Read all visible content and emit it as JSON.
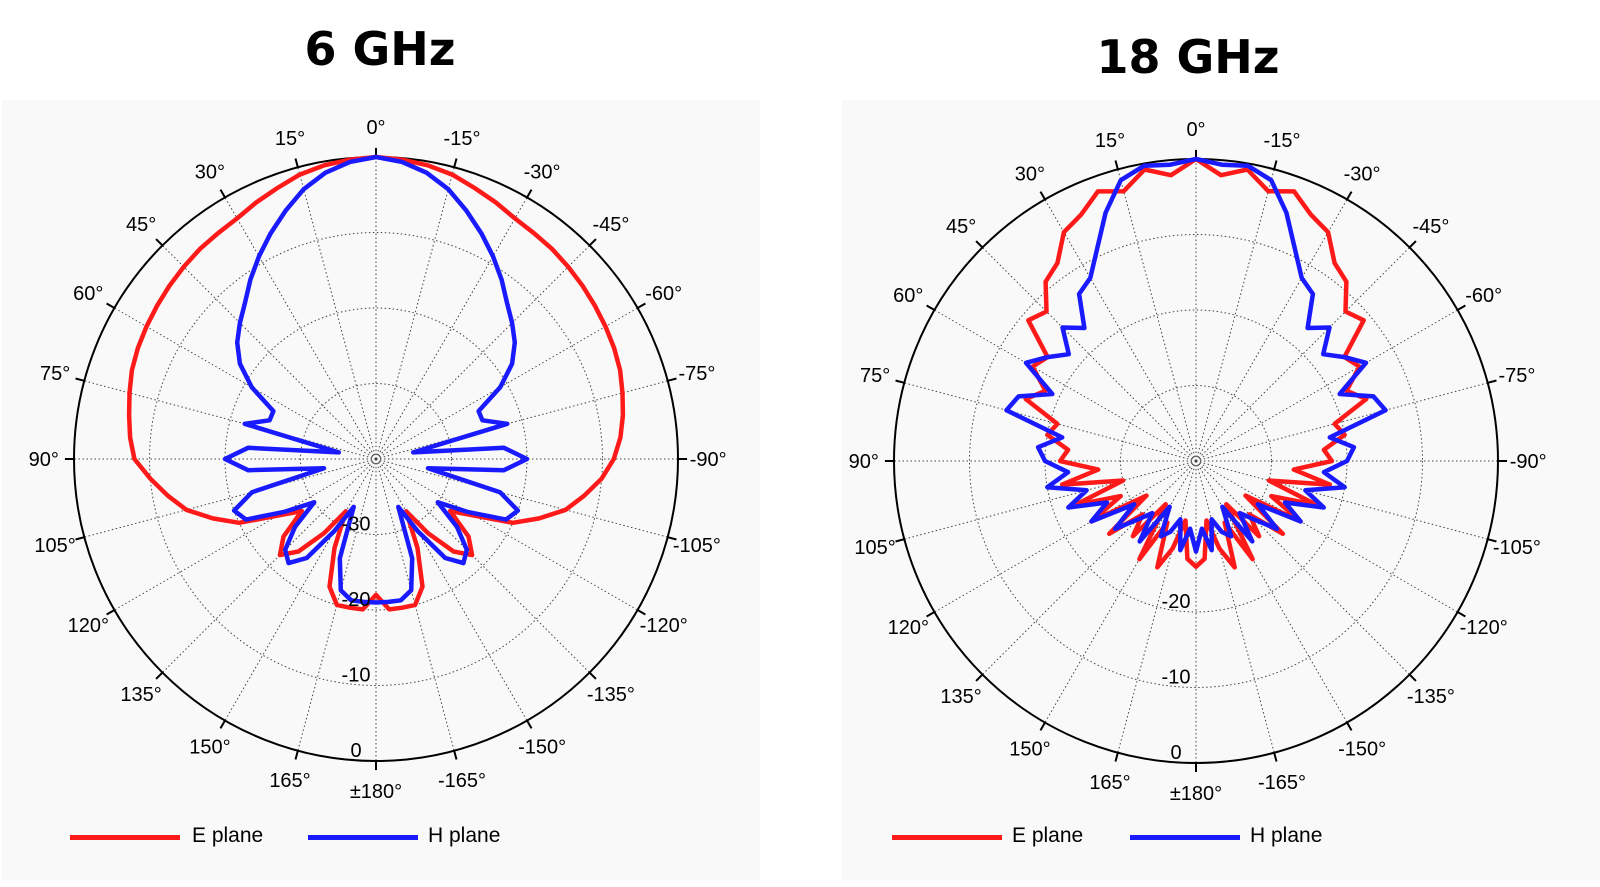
{
  "chart_data": [
    {
      "type": "polar-line",
      "title": "6 GHz",
      "angle_labels": [
        "0°",
        "15°",
        "30°",
        "45°",
        "60°",
        "75°",
        "90°",
        "105°",
        "120°",
        "135°",
        "150°",
        "165°",
        "±180°",
        "-165°",
        "-150°",
        "-135°",
        "-120°",
        "-105°",
        "-90°",
        "-75°",
        "-60°",
        "-45°",
        "-30°",
        "-15°"
      ],
      "radial_ticks": [
        "-30",
        "-20",
        "-10",
        "0"
      ],
      "r_range_db": [
        -40,
        0
      ],
      "angle_direction": "counterclockwise, 0° at top",
      "grid": true,
      "legend_position": "bottom",
      "series": [
        {
          "name": "E plane",
          "color": "#ff1a1a",
          "angles_deg": [
            0,
            5,
            10,
            15,
            20,
            25,
            30,
            35,
            40,
            45,
            50,
            55,
            60,
            65,
            70,
            75,
            80,
            85,
            90,
            95,
            100,
            105,
            110,
            115,
            120,
            125,
            130,
            135,
            140,
            145,
            150,
            155,
            160,
            165,
            170,
            175,
            180,
            185,
            190,
            195,
            200,
            205,
            210,
            215,
            220,
            225,
            230,
            235,
            240,
            245,
            250,
            255,
            260,
            265,
            270,
            275,
            280,
            285,
            290,
            295,
            300,
            305,
            310,
            315,
            320,
            325,
            330,
            335,
            340,
            345,
            350,
            355
          ],
          "values_db": [
            0,
            -0.2,
            -0.5,
            -1,
            -1.8,
            -2.5,
            -3.2,
            -3.5,
            -3.7,
            -4,
            -4.3,
            -4.6,
            -4.9,
            -5.2,
            -5.6,
            -6.2,
            -6.8,
            -7.3,
            -8,
            -10,
            -12,
            -14,
            -17,
            -20,
            -25,
            -28,
            -24,
            -22,
            -24,
            -28,
            -32,
            -27,
            -22,
            -20,
            -20,
            -20,
            -22,
            -20,
            -20,
            -20,
            -22,
            -27,
            -32,
            -28,
            -24,
            -22,
            -24,
            -28,
            -25,
            -20,
            -17,
            -14,
            -12,
            -10,
            -8.5,
            -7.5,
            -6.8,
            -6.2,
            -5.6,
            -5.2,
            -4.9,
            -4.6,
            -4.3,
            -4,
            -3.7,
            -3.5,
            -3.2,
            -2.5,
            -1.8,
            -1,
            -0.5,
            -0.2
          ]
        },
        {
          "name": "H plane",
          "color": "#1a1aff",
          "angles_deg": [
            0,
            5,
            10,
            15,
            20,
            25,
            30,
            35,
            40,
            45,
            50,
            55,
            60,
            65,
            70,
            75,
            80,
            85,
            90,
            95,
            100,
            105,
            110,
            115,
            120,
            125,
            130,
            135,
            140,
            145,
            150,
            155,
            160,
            165,
            170,
            175,
            180,
            185,
            190,
            195,
            200,
            205,
            210,
            215,
            220,
            225,
            230,
            235,
            240,
            245,
            250,
            255,
            260,
            265,
            270,
            275,
            280,
            285,
            290,
            295,
            300,
            305,
            310,
            315,
            320,
            325,
            330,
            335,
            340,
            345,
            350,
            355
          ],
          "values_db": [
            0,
            -0.5,
            -1.5,
            -3,
            -5,
            -7,
            -9,
            -11,
            -13,
            -14.5,
            -16,
            -18,
            -21,
            -25,
            -25,
            -22,
            -35,
            -23,
            -20,
            -23,
            -33,
            -23,
            -20,
            -21,
            -26,
            -30,
            -26,
            -23,
            -22,
            -24,
            -29,
            -33,
            -26,
            -22,
            -21,
            -21,
            -21,
            -21,
            -21,
            -22,
            -26,
            -33,
            -29,
            -24,
            -22,
            -23,
            -26,
            -30,
            -26,
            -21,
            -20,
            -23,
            -33,
            -23,
            -20,
            -23,
            -35,
            -22,
            -25,
            -25,
            -21,
            -18,
            -16,
            -14.5,
            -13,
            -11,
            -9,
            -7,
            -5,
            -3,
            -1.5,
            -0.5
          ]
        }
      ]
    },
    {
      "type": "polar-line",
      "title": "18 GHz",
      "angle_labels": [
        "0°",
        "15°",
        "30°",
        "45°",
        "60°",
        "75°",
        "90°",
        "105°",
        "120°",
        "135°",
        "150°",
        "165°",
        "±180°",
        "-165°",
        "-150°",
        "-135°",
        "-120°",
        "-105°",
        "-90°",
        "-75°",
        "-60°",
        "-45°",
        "-30°",
        "-15°"
      ],
      "radial_ticks": [
        "-20",
        "-10",
        "0"
      ],
      "r_range_db": [
        -40,
        0
      ],
      "angle_direction": "counterclockwise, 0° at top",
      "grid": true,
      "legend_position": "bottom",
      "series": [
        {
          "name": "E plane",
          "color": "#ff1a1a",
          "angles_deg": [
            0,
            5,
            10,
            15,
            20,
            25,
            30,
            35,
            40,
            45,
            50,
            55,
            60,
            65,
            70,
            75,
            80,
            85,
            90,
            95,
            100,
            105,
            110,
            115,
            120,
            125,
            130,
            135,
            140,
            145,
            150,
            155,
            160,
            165,
            170,
            175,
            180,
            185,
            190,
            195,
            200,
            205,
            210,
            215,
            220,
            225,
            230,
            235,
            240,
            245,
            250,
            255,
            260,
            265,
            270,
            275,
            280,
            285,
            290,
            295,
            300,
            305,
            310,
            315,
            320,
            325,
            330,
            335,
            340,
            345,
            350,
            355
          ],
          "values_db": [
            0,
            -2,
            -0.8,
            -3,
            -2,
            -4,
            -5,
            -8,
            -9,
            -12,
            -11,
            -16,
            -15,
            -18,
            -16,
            -21,
            -20,
            -23,
            -22,
            -27,
            -22,
            -30,
            -23,
            -29,
            -24,
            -32,
            -25,
            -30,
            -27,
            -33,
            -25,
            -31,
            -25,
            -28,
            -32,
            -27,
            -26,
            -27,
            -32,
            -28,
            -25,
            -31,
            -25,
            -33,
            -27,
            -30,
            -25,
            -32,
            -24,
            -29,
            -23,
            -30,
            -22,
            -27,
            -22,
            -23,
            -20,
            -21,
            -16,
            -18,
            -15,
            -16,
            -11,
            -12,
            -9,
            -8,
            -5,
            -4,
            -2,
            -3,
            -0.8,
            -2
          ]
        },
        {
          "name": "H plane",
          "color": "#1a1aff",
          "angles_deg": [
            0,
            5,
            10,
            15,
            20,
            25,
            30,
            35,
            40,
            45,
            50,
            55,
            60,
            65,
            70,
            75,
            80,
            85,
            90,
            95,
            100,
            105,
            110,
            115,
            120,
            125,
            130,
            135,
            140,
            145,
            150,
            155,
            160,
            165,
            170,
            175,
            180,
            185,
            190,
            195,
            200,
            205,
            210,
            215,
            220,
            225,
            230,
            235,
            240,
            245,
            250,
            255,
            260,
            265,
            270,
            275,
            280,
            285,
            290,
            295,
            300,
            305,
            310,
            315,
            320,
            325,
            330,
            335,
            340,
            345,
            350,
            355
          ],
          "values_db": [
            0,
            -0.6,
            -0.3,
            -1.5,
            -5,
            -9,
            -12,
            -13,
            -17,
            -15,
            -18,
            -16,
            -14,
            -19,
            -15,
            -14,
            -22,
            -19,
            -20,
            -23,
            -20,
            -25,
            -22,
            -27,
            -24,
            -30,
            -26,
            -29,
            -31,
            -27,
            -33,
            -29,
            -30,
            -32,
            -28,
            -31,
            -28,
            -31,
            -28,
            -32,
            -30,
            -29,
            -33,
            -27,
            -31,
            -29,
            -26,
            -30,
            -24,
            -27,
            -22,
            -25,
            -20,
            -23,
            -20,
            -19,
            -22,
            -14,
            -15,
            -19,
            -14,
            -16,
            -18,
            -15,
            -17,
            -13,
            -12,
            -9,
            -5,
            -1.5,
            -0.3,
            -0.6
          ]
        }
      ]
    }
  ]
}
